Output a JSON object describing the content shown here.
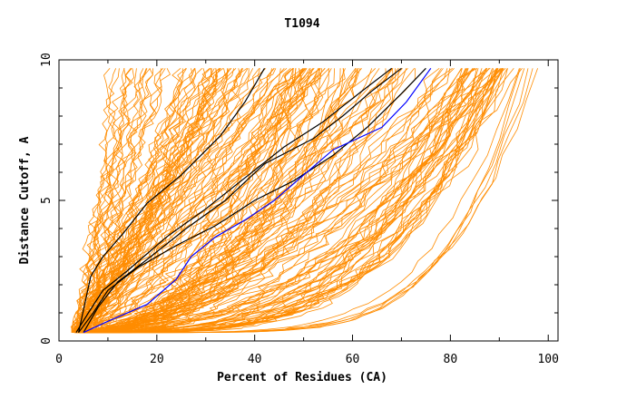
{
  "chart_data": {
    "type": "line",
    "title": "T1094",
    "xlabel": "Percent of Residues (CA)",
    "ylabel": "Distance Cutoff, A",
    "xlim": [
      0,
      102
    ],
    "ylim": [
      0,
      10
    ],
    "xticks": [
      0,
      20,
      40,
      60,
      80,
      100
    ],
    "yticks": [
      0,
      5,
      10
    ],
    "colors": {
      "bundle": "#ff8c00",
      "highlight_black": "#000000",
      "highlight_blue": "#0000ff"
    },
    "series": [
      {
        "color": "black",
        "values": [
          [
            4,
            0.3
          ],
          [
            6.5,
            2.3
          ],
          [
            9,
            3
          ],
          [
            13,
            3.8
          ],
          [
            18,
            4.9
          ],
          [
            25,
            5.9
          ],
          [
            33,
            7.3
          ],
          [
            38,
            8.5
          ],
          [
            42,
            9.7
          ]
        ]
      },
      {
        "color": "black",
        "values": [
          [
            3.5,
            0.3
          ],
          [
            6,
            1
          ],
          [
            9,
            1.8
          ],
          [
            14,
            2.5
          ],
          [
            22,
            3.7
          ],
          [
            30,
            4.7
          ],
          [
            38,
            5.8
          ],
          [
            46,
            6.9
          ],
          [
            54,
            7.8
          ],
          [
            62,
            8.9
          ],
          [
            68,
            9.7
          ]
        ]
      },
      {
        "color": "black",
        "values": [
          [
            4,
            0.3
          ],
          [
            7,
            1
          ],
          [
            10,
            1.8
          ],
          [
            16,
            2.6
          ],
          [
            24,
            3.4
          ],
          [
            32,
            4.1
          ],
          [
            40,
            5.0
          ],
          [
            48,
            5.7
          ],
          [
            56,
            6.6
          ],
          [
            63,
            7.6
          ],
          [
            70,
            8.8
          ],
          [
            75,
            9.7
          ]
        ]
      },
      {
        "color": "black",
        "values": [
          [
            5,
            0.3
          ],
          [
            8,
            1.2
          ],
          [
            12,
            2.1
          ],
          [
            18,
            2.9
          ],
          [
            26,
            4.0
          ],
          [
            34,
            5.0
          ],
          [
            42,
            6.3
          ],
          [
            52,
            7.2
          ],
          [
            58,
            8.0
          ],
          [
            64,
            8.9
          ],
          [
            70,
            9.7
          ]
        ]
      },
      {
        "color": "blue",
        "values": [
          [
            5,
            0.3
          ],
          [
            10,
            0.7
          ],
          [
            18,
            1.3
          ],
          [
            24,
            2.2
          ],
          [
            27,
            3
          ],
          [
            32,
            3.7
          ],
          [
            38,
            4.3
          ],
          [
            44,
            5.0
          ],
          [
            50,
            5.9
          ],
          [
            56,
            6.8
          ],
          [
            66,
            7.6
          ],
          [
            71,
            8.5
          ],
          [
            76,
            9.7
          ]
        ]
      }
    ]
  }
}
